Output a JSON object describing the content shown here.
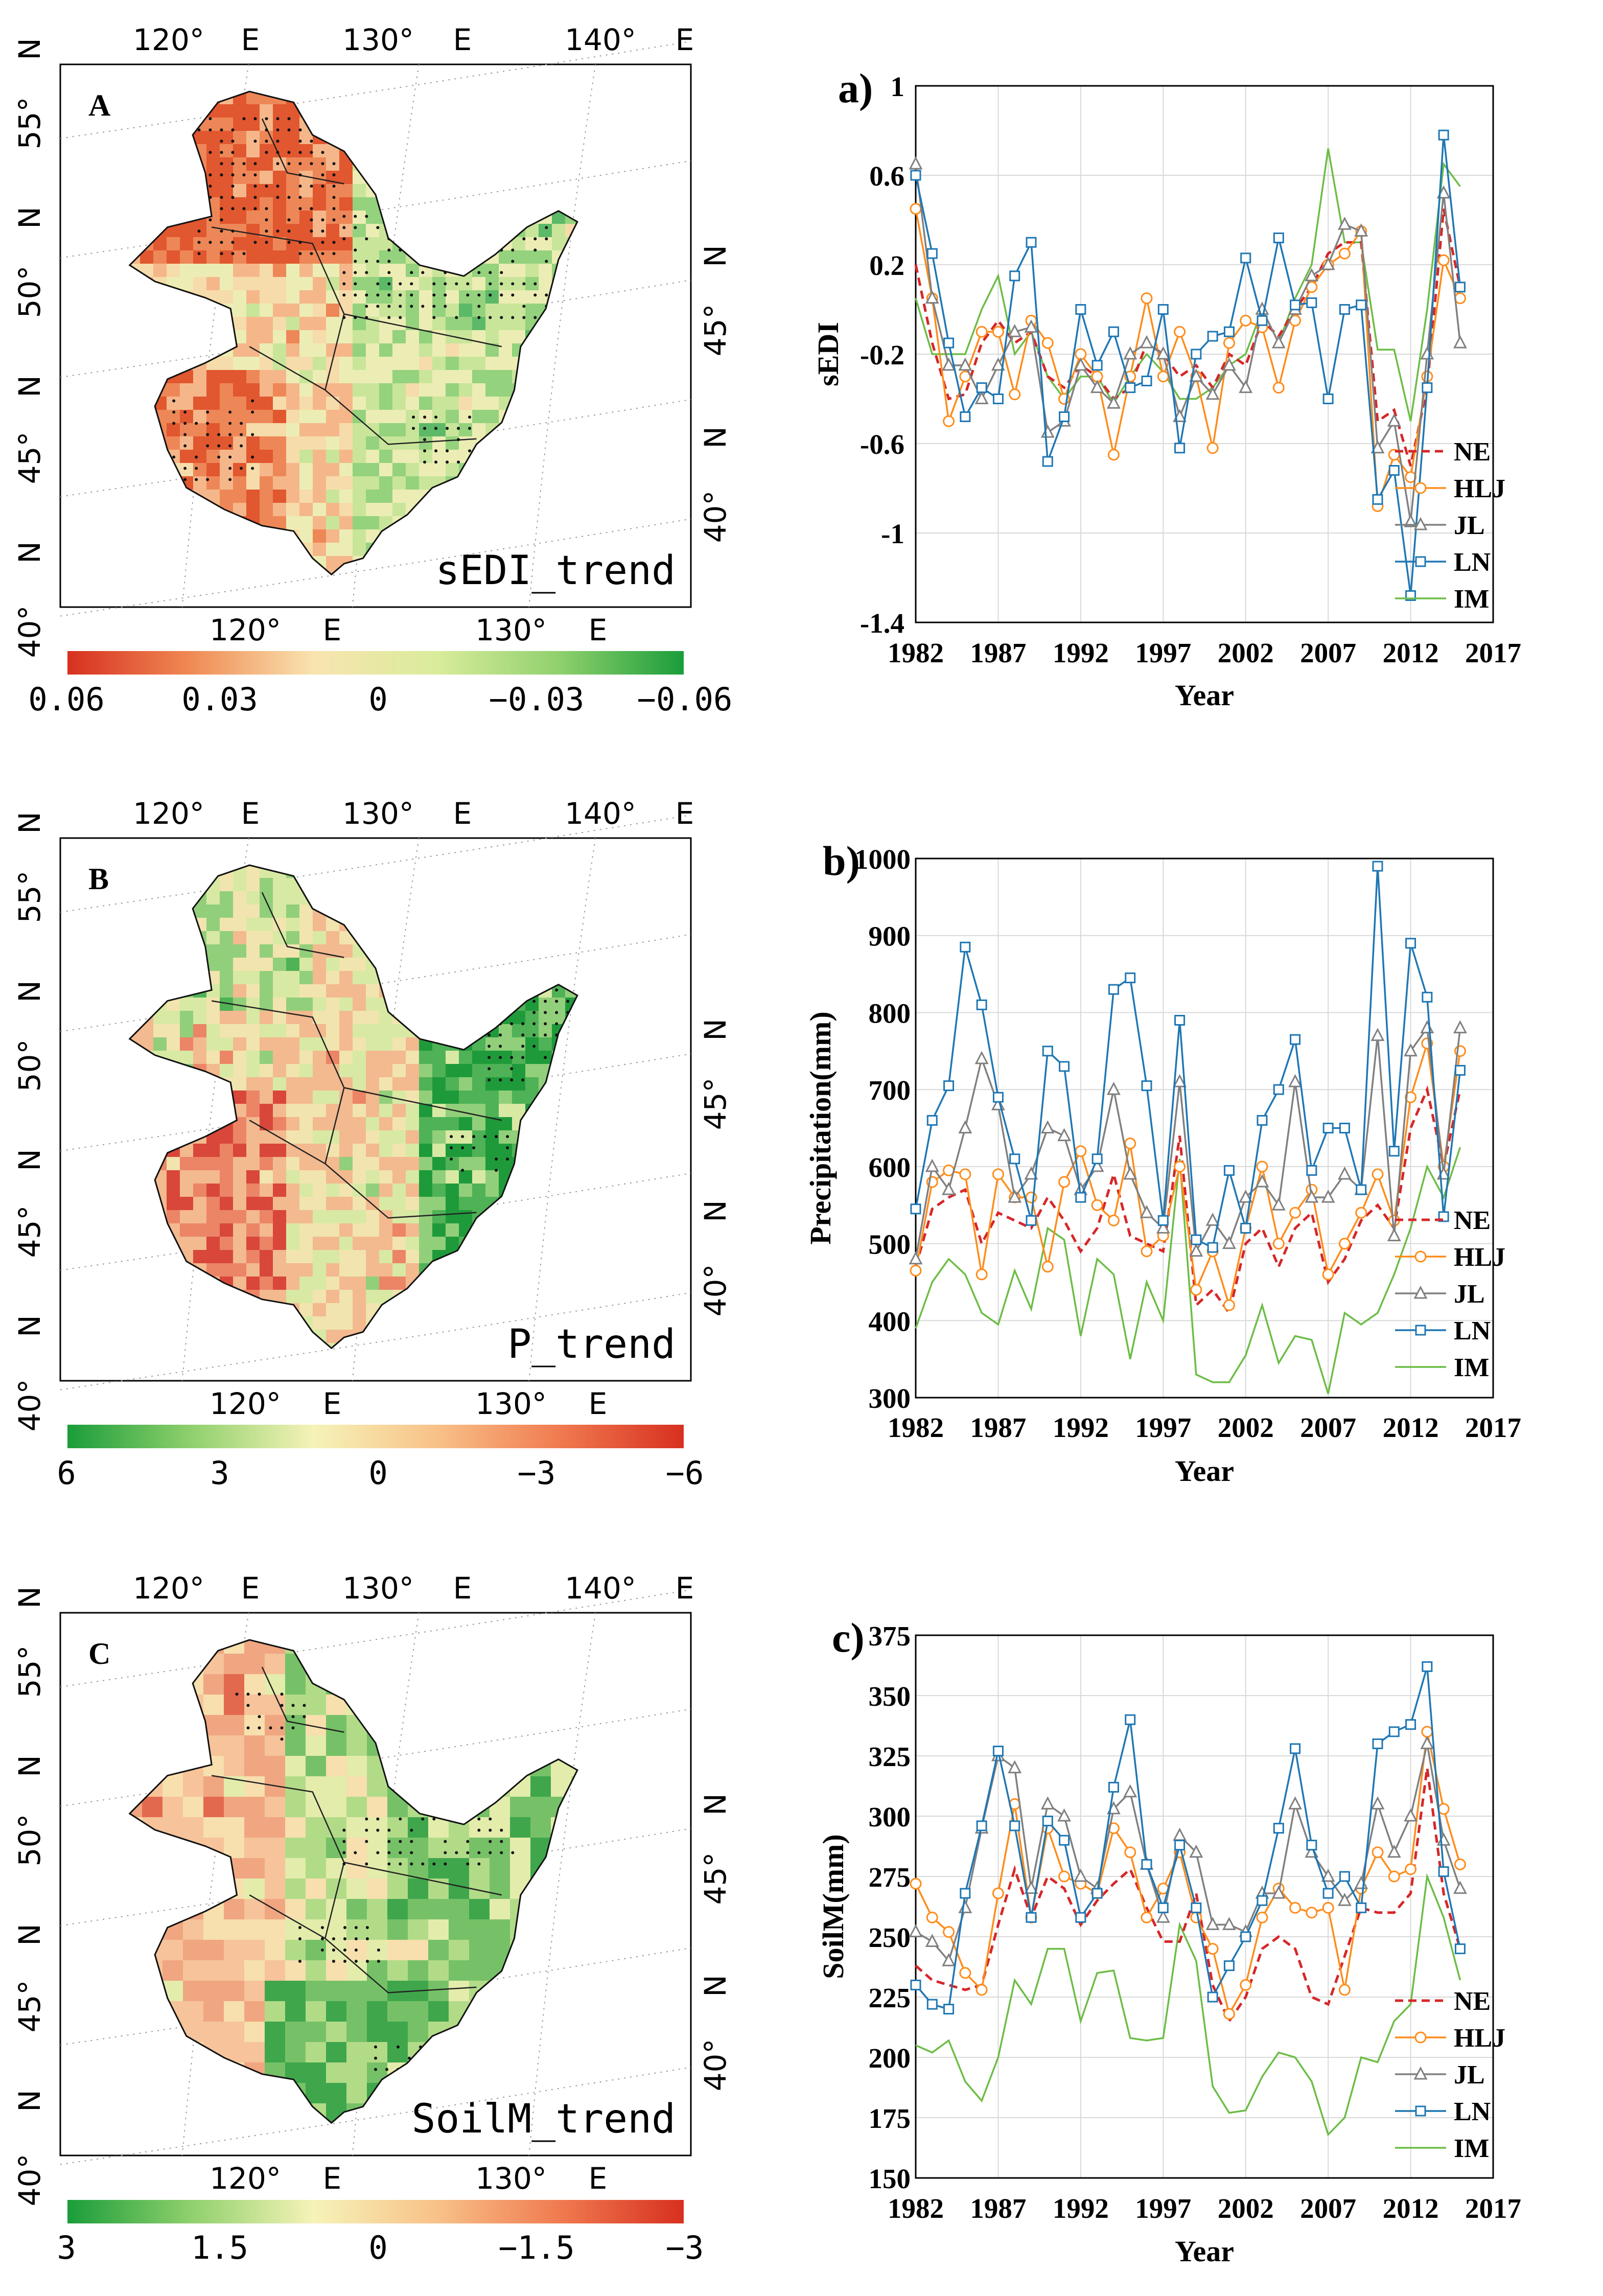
{
  "maps": [
    {
      "letter": "A",
      "label": "sEDI_trend",
      "top_lon": [
        "120°",
        "E",
        "130°",
        "E",
        "140°",
        "E"
      ],
      "bottom_lon": [
        "120°",
        "E",
        "130°",
        "E"
      ],
      "left_lat": [
        "N",
        "55°",
        "N",
        "50°",
        "N",
        "45°",
        "N",
        "40°"
      ],
      "right_lat": [
        "N",
        "45°",
        "N",
        "40°"
      ],
      "colorbar": {
        "ticks": [
          "0.06",
          "0.03",
          "0",
          "−0.03",
          "−0.06"
        ],
        "colors": [
          "#d7301f",
          "#f08a54",
          "#f9e4b0",
          "#d9ec9b",
          "#8fd06c",
          "#1a9d3a"
        ]
      },
      "palette": [
        "#e1572f",
        "#ee8757",
        "#f5b78a",
        "#f6dcaa",
        "#ecedb4",
        "#c9e59a",
        "#94d27d",
        "#5cb967"
      ]
    },
    {
      "letter": "B",
      "label": "P_trend",
      "top_lon": [
        "120°",
        "E",
        "130°",
        "E",
        "140°",
        "E"
      ],
      "bottom_lon": [
        "120°",
        "E",
        "130°",
        "E"
      ],
      "left_lat": [
        "N",
        "55°",
        "N",
        "50°",
        "N",
        "45°",
        "N",
        "40°"
      ],
      "right_lat": [
        "N",
        "45°",
        "N",
        "40°"
      ],
      "colorbar": {
        "ticks": [
          "6",
          "3",
          "0",
          "−3",
          "−6"
        ],
        "colors": [
          "#1a9d3a",
          "#8fd06c",
          "#f6f3b8",
          "#f8c188",
          "#f07a4f",
          "#d7301f"
        ]
      },
      "palette": [
        "#1f9a3b",
        "#4fb256",
        "#92cf7a",
        "#d8e9a4",
        "#f2e4ae",
        "#f3b98f",
        "#eb8566",
        "#d8473a"
      ]
    },
    {
      "letter": "C",
      "label": "SoilM_trend",
      "top_lon": [
        "120°",
        "E",
        "130°",
        "E",
        "140°",
        "E"
      ],
      "bottom_lon": [
        "120°",
        "E",
        "130°",
        "E"
      ],
      "left_lat": [
        "N",
        "55°",
        "N",
        "50°",
        "N",
        "45°",
        "N",
        "40°"
      ],
      "right_lat": [
        "N",
        "45°",
        "N",
        "40°"
      ],
      "colorbar": {
        "ticks": [
          "3",
          "1.5",
          "0",
          "−1.5",
          "−3"
        ],
        "colors": [
          "#1a9d3a",
          "#8fd06c",
          "#f6f3b8",
          "#f8c188",
          "#f07a4f",
          "#d7301f"
        ]
      },
      "palette": [
        "#3fa64c",
        "#76c167",
        "#b2db88",
        "#e3ecab",
        "#f7dfae",
        "#f6c39a",
        "#f0a681",
        "#e3694e"
      ]
    }
  ],
  "chart_data": [
    {
      "type": "line",
      "panel": "a)",
      "title": "",
      "xlabel": "Year",
      "ylabel": "sEDI",
      "xlim": [
        1982,
        2017
      ],
      "ylim": [
        -1.4,
        1
      ],
      "xticks": [
        1982,
        1987,
        1992,
        1997,
        2002,
        2007,
        2012,
        2017
      ],
      "yticks": [
        -1.4,
        -1,
        -0.6,
        -0.2,
        0.2,
        0.6,
        1
      ],
      "ytick_labels": [
        "-1.4",
        "-1",
        "-0.6",
        "-0.2",
        "0.2",
        "0.6",
        "1"
      ],
      "xtick_labels": [
        "1982",
        "1987",
        "1992",
        "1997",
        "2002",
        "2007",
        "2012",
        "2017"
      ],
      "x": [
        1982,
        1983,
        1984,
        1985,
        1986,
        1987,
        1988,
        1989,
        1990,
        1991,
        1992,
        1993,
        1994,
        1995,
        1996,
        1997,
        1998,
        1999,
        2000,
        2001,
        2002,
        2003,
        2004,
        2005,
        2006,
        2007,
        2008,
        2009,
        2010,
        2011,
        2012,
        2013,
        2014,
        2015
      ],
      "series": [
        {
          "name": "NE",
          "values": [
            0.2,
            -0.15,
            -0.4,
            -0.38,
            -0.15,
            -0.05,
            -0.15,
            -0.1,
            -0.3,
            -0.35,
            -0.25,
            -0.3,
            -0.4,
            -0.35,
            -0.15,
            -0.2,
            -0.3,
            -0.25,
            -0.35,
            -0.2,
            -0.25,
            -0.05,
            -0.12,
            0.0,
            0.1,
            0.25,
            0.3,
            0.3,
            -0.5,
            -0.45,
            -0.7,
            -0.35,
            0.45,
            0.1
          ]
        },
        {
          "name": "HLJ",
          "values": [
            0.45,
            0.05,
            -0.5,
            -0.3,
            -0.1,
            -0.1,
            -0.38,
            -0.05,
            -0.15,
            -0.4,
            -0.2,
            -0.3,
            -0.65,
            -0.3,
            0.05,
            -0.3,
            -0.1,
            -0.3,
            -0.62,
            -0.15,
            -0.05,
            -0.08,
            -0.35,
            -0.05,
            0.1,
            0.2,
            0.25,
            0.35,
            -0.88,
            -0.65,
            -0.75,
            -0.3,
            0.22,
            0.05
          ]
        },
        {
          "name": "JL",
          "values": [
            0.65,
            0.05,
            -0.25,
            -0.25,
            -0.4,
            -0.25,
            -0.1,
            -0.08,
            -0.55,
            -0.5,
            -0.25,
            -0.35,
            -0.42,
            -0.2,
            -0.15,
            -0.2,
            -0.48,
            -0.3,
            -0.38,
            -0.25,
            -0.35,
            0.0,
            -0.15,
            0.0,
            0.15,
            0.2,
            0.38,
            0.35,
            -0.62,
            -0.5,
            -0.95,
            -0.2,
            0.52,
            -0.15
          ]
        },
        {
          "name": "LN",
          "values": [
            0.6,
            0.25,
            -0.15,
            -0.48,
            -0.35,
            -0.4,
            0.15,
            0.3,
            -0.68,
            -0.48,
            0.0,
            -0.25,
            -0.1,
            -0.35,
            -0.32,
            0.0,
            -0.62,
            -0.2,
            -0.12,
            -0.1,
            0.23,
            -0.05,
            0.32,
            0.02,
            0.03,
            -0.4,
            0.0,
            0.02,
            -0.85,
            -0.72,
            -1.28,
            -0.35,
            0.78,
            0.1
          ]
        },
        {
          "name": "IM",
          "values": [
            0.05,
            -0.2,
            -0.2,
            -0.2,
            0.0,
            0.15,
            -0.2,
            -0.1,
            -0.3,
            -0.4,
            -0.3,
            -0.3,
            -0.42,
            -0.3,
            -0.2,
            -0.28,
            -0.4,
            -0.4,
            -0.35,
            -0.25,
            -0.2,
            0.0,
            -0.15,
            0.05,
            0.2,
            0.72,
            0.3,
            0.3,
            -0.18,
            -0.18,
            -0.5,
            0.0,
            0.65,
            0.55
          ]
        }
      ]
    },
    {
      "type": "line",
      "panel": "b)",
      "title": "",
      "xlabel": "Year",
      "ylabel": "Precipitation(mm)",
      "xlim": [
        1982,
        2017
      ],
      "ylim": [
        300,
        1000
      ],
      "xticks": [
        1982,
        1987,
        1992,
        1997,
        2002,
        2007,
        2012,
        2017
      ],
      "yticks": [
        300,
        400,
        500,
        600,
        700,
        800,
        900,
        1000
      ],
      "ytick_labels": [
        "300",
        "400",
        "500",
        "600",
        "700",
        "800",
        "900",
        "1000"
      ],
      "xtick_labels": [
        "1982",
        "1987",
        "1992",
        "1997",
        "2002",
        "2007",
        "2012",
        "2017"
      ],
      "x": [
        1982,
        1983,
        1984,
        1985,
        1986,
        1987,
        1988,
        1989,
        1990,
        1991,
        1992,
        1993,
        1994,
        1995,
        1996,
        1997,
        1998,
        1999,
        2000,
        2001,
        2002,
        2003,
        2004,
        2005,
        2006,
        2007,
        2008,
        2009,
        2010,
        2011,
        2012,
        2013,
        2014,
        2015
      ],
      "series": [
        {
          "name": "NE",
          "values": [
            470,
            545,
            560,
            570,
            500,
            540,
            530,
            520,
            560,
            530,
            490,
            520,
            590,
            510,
            500,
            490,
            640,
            420,
            440,
            410,
            500,
            520,
            470,
            520,
            540,
            450,
            480,
            530,
            550,
            520,
            650,
            700,
            600,
            700
          ]
        },
        {
          "name": "HLJ",
          "values": [
            465,
            580,
            595,
            590,
            460,
            590,
            560,
            560,
            470,
            580,
            620,
            550,
            530,
            630,
            490,
            510,
            600,
            440,
            490,
            420,
            520,
            600,
            500,
            540,
            570,
            460,
            500,
            540,
            590,
            530,
            690,
            760,
            600,
            750
          ]
        },
        {
          "name": "JL",
          "values": [
            480,
            600,
            570,
            650,
            740,
            680,
            560,
            590,
            650,
            640,
            570,
            600,
            700,
            590,
            540,
            520,
            710,
            490,
            530,
            500,
            560,
            580,
            550,
            710,
            560,
            560,
            590,
            570,
            770,
            510,
            750,
            780,
            590,
            780
          ]
        },
        {
          "name": "LN",
          "values": [
            545,
            660,
            705,
            885,
            810,
            690,
            610,
            530,
            750,
            730,
            560,
            610,
            830,
            845,
            705,
            530,
            790,
            505,
            495,
            595,
            520,
            660,
            700,
            765,
            595,
            650,
            650,
            570,
            990,
            620,
            890,
            820,
            535,
            725
          ]
        },
        {
          "name": "IM",
          "values": [
            390,
            450,
            480,
            460,
            410,
            395,
            465,
            415,
            520,
            505,
            380,
            480,
            460,
            350,
            450,
            400,
            610,
            330,
            320,
            320,
            355,
            420,
            345,
            380,
            375,
            305,
            410,
            395,
            410,
            460,
            520,
            600,
            560,
            625
          ]
        }
      ]
    },
    {
      "type": "line",
      "panel": "c)",
      "title": "",
      "xlabel": "Year",
      "ylabel": "SoilM(mm)",
      "xlim": [
        1982,
        2017
      ],
      "ylim": [
        150,
        375
      ],
      "xticks": [
        1982,
        1987,
        1992,
        1997,
        2002,
        2007,
        2012,
        2017
      ],
      "yticks": [
        150,
        175,
        200,
        225,
        250,
        275,
        300,
        325,
        350,
        375
      ],
      "ytick_labels": [
        "150",
        "175",
        "200",
        "225",
        "250",
        "275",
        "300",
        "325",
        "350",
        "375"
      ],
      "xtick_labels": [
        "1982",
        "1987",
        "1992",
        "1997",
        "2002",
        "2007",
        "2012",
        "2017"
      ],
      "x": [
        1982,
        1983,
        1984,
        1985,
        1986,
        1987,
        1988,
        1989,
        1990,
        1991,
        1992,
        1993,
        1994,
        1995,
        1996,
        1997,
        1998,
        1999,
        2000,
        2001,
        2002,
        2003,
        2004,
        2005,
        2006,
        2007,
        2008,
        2009,
        2010,
        2011,
        2012,
        2013,
        2014,
        2015
      ],
      "series": [
        {
          "name": "NE",
          "values": [
            238,
            232,
            230,
            228,
            230,
            255,
            278,
            258,
            275,
            270,
            255,
            265,
            272,
            278,
            262,
            248,
            248,
            268,
            230,
            215,
            225,
            245,
            250,
            245,
            225,
            222,
            242,
            262,
            260,
            260,
            268,
            320,
            268,
            245
          ]
        },
        {
          "name": "HLJ",
          "values": [
            272,
            258,
            252,
            235,
            228,
            268,
            305,
            258,
            295,
            275,
            272,
            268,
            295,
            285,
            258,
            270,
            285,
            258,
            245,
            218,
            230,
            258,
            270,
            262,
            260,
            262,
            228,
            270,
            285,
            275,
            278,
            335,
            303,
            280
          ]
        },
        {
          "name": "JL",
          "values": [
            252,
            248,
            240,
            262,
            295,
            325,
            320,
            270,
            305,
            300,
            275,
            270,
            303,
            310,
            280,
            258,
            292,
            285,
            255,
            255,
            252,
            268,
            268,
            305,
            285,
            275,
            265,
            272,
            305,
            285,
            300,
            330,
            290,
            270
          ]
        },
        {
          "name": "LN",
          "values": [
            230,
            222,
            220,
            268,
            296,
            327,
            296,
            258,
            298,
            290,
            258,
            268,
            312,
            340,
            280,
            262,
            288,
            262,
            225,
            238,
            250,
            265,
            295,
            328,
            288,
            268,
            275,
            262,
            330,
            335,
            338,
            362,
            277,
            245
          ]
        },
        {
          "name": "IM",
          "values": [
            205,
            202,
            207,
            190,
            182,
            200,
            232,
            222,
            245,
            245,
            215,
            235,
            236,
            208,
            207,
            208,
            255,
            240,
            188,
            177,
            178,
            192,
            202,
            200,
            190,
            168,
            175,
            200,
            198,
            215,
            222,
            275,
            258,
            232
          ]
        }
      ]
    }
  ],
  "legend": {
    "entries": [
      "NE",
      "HLJ",
      "JL",
      "LN",
      "IM"
    ]
  },
  "series_colors": {
    "NE": "#d62728",
    "HLJ": "#ff8c1a",
    "JL": "#808080",
    "LN": "#1f77b4",
    "IM": "#6cbd45"
  }
}
